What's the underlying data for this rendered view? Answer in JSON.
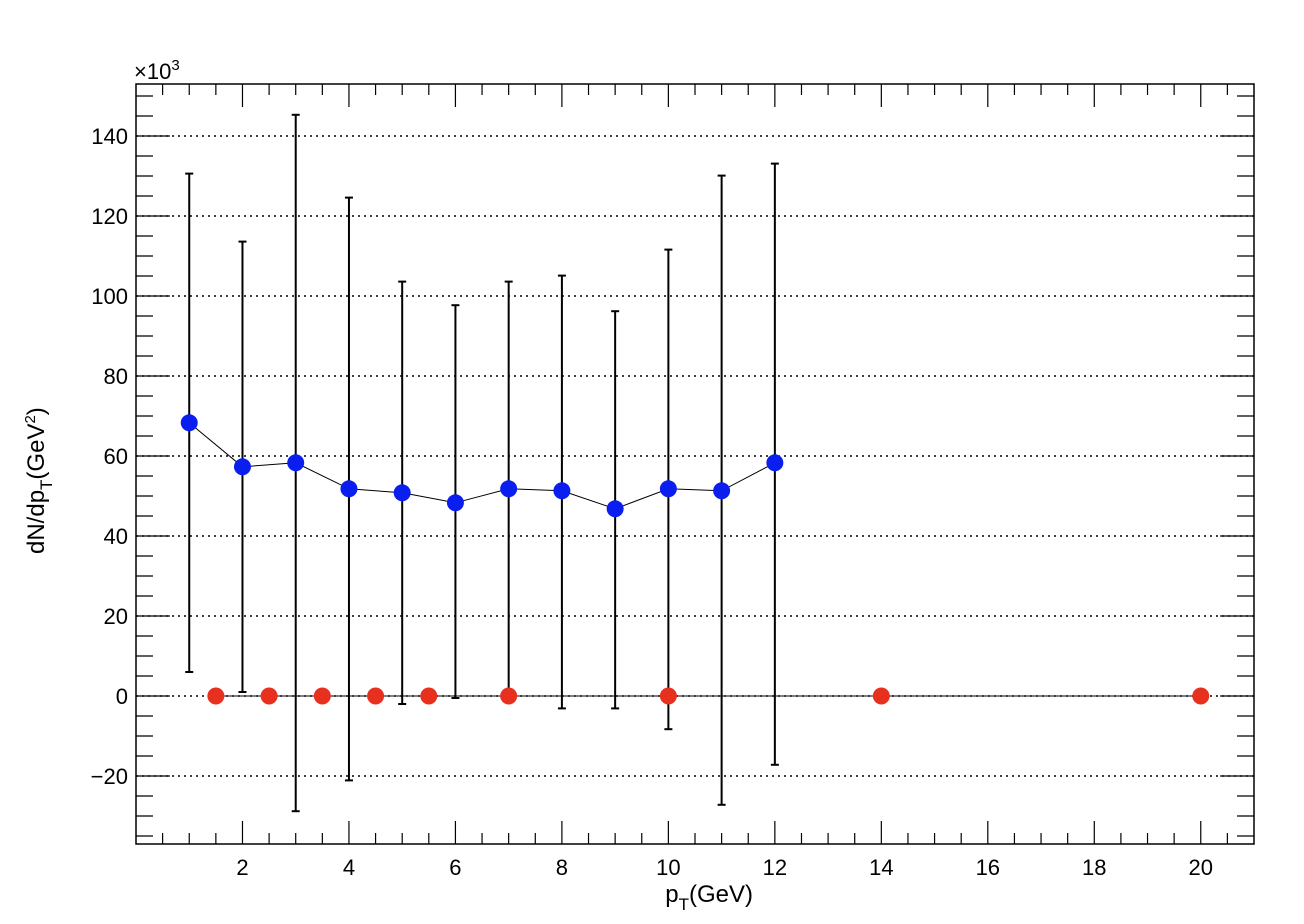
{
  "chart_data": {
    "type": "scatter",
    "title": "",
    "xlabel": {
      "main": "p",
      "sub": "T",
      "rest": "(GeV)"
    },
    "ylabel": {
      "main": "dN/dp",
      "sub": "T",
      "rest": "(GeV",
      "sup": "2",
      "close": ")"
    },
    "y_exponent": {
      "prefix": "×10",
      "power": "3"
    },
    "xlim": [
      0,
      21
    ],
    "ylim": [
      -37,
      153
    ],
    "x_ticks": [
      2,
      4,
      6,
      8,
      10,
      12,
      14,
      16,
      18,
      20
    ],
    "y_ticks": [
      -20,
      0,
      20,
      40,
      60,
      80,
      100,
      120,
      140
    ],
    "x_tick_labels": [
      "2",
      "4",
      "6",
      "8",
      "10",
      "12",
      "14",
      "16",
      "18",
      "20"
    ],
    "y_tick_labels": [
      "−20",
      "0",
      "20",
      "40",
      "60",
      "80",
      "100",
      "120",
      "140"
    ],
    "grid": {
      "horizontal": true,
      "vertical": false,
      "style": "dotted"
    },
    "series": [
      {
        "color": "#0a1ef0",
        "line": true,
        "x": [
          1,
          2,
          3,
          4,
          5,
          6,
          7,
          8,
          9,
          10,
          11,
          12
        ],
        "y": [
          68.3,
          57.3,
          58.3,
          51.8,
          50.8,
          48.3,
          51.8,
          51.3,
          46.8,
          51.8,
          51.3,
          58.3
        ],
        "y_low": [
          6,
          1,
          -28.8,
          -21.1,
          -2,
          -0.5,
          0,
          -3.1,
          -3.1,
          -8.3,
          -27.2,
          -17.2
        ],
        "y_high": [
          130.6,
          113.6,
          145.3,
          124.6,
          103.6,
          97.7,
          103.6,
          105.1,
          96.2,
          111.6,
          130.1,
          133.1
        ]
      },
      {
        "color": "#e8301e",
        "line": true,
        "x": [
          1.5,
          2.5,
          3.5,
          4.5,
          5.5,
          7,
          10,
          14,
          20
        ],
        "y": [
          0,
          0,
          0,
          0,
          0,
          0,
          0,
          0,
          0
        ]
      }
    ]
  }
}
